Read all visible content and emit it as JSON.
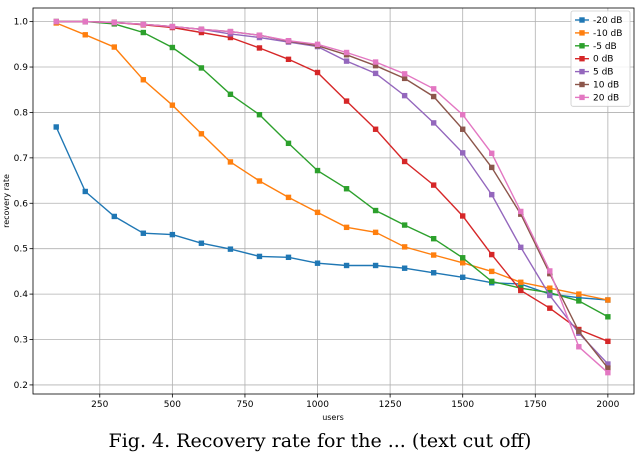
{
  "caption": "Fig. 4. Recovery rate for the ... (text cut off)",
  "chart_data": {
    "type": "line",
    "xlabel": "users",
    "ylabel": "recovery rate",
    "xlim": [
      20,
      2090
    ],
    "ylim": [
      0.18,
      1.03
    ],
    "xticks": [
      250,
      500,
      750,
      1000,
      1250,
      1500,
      1750,
      2000
    ],
    "yticks": [
      0.2,
      0.3,
      0.4,
      0.5,
      0.6,
      0.7,
      0.8,
      0.9,
      1.0
    ],
    "grid": true,
    "legend_position": "top-right",
    "x": [
      100,
      200,
      300,
      400,
      500,
      600,
      700,
      800,
      900,
      1000,
      1100,
      1200,
      1300,
      1400,
      1500,
      1600,
      1700,
      1800,
      1900,
      2000
    ],
    "series": [
      {
        "name": "-20 dB",
        "color": "#1f77b4",
        "values": [
          0.768,
          0.626,
          0.571,
          0.534,
          0.531,
          0.512,
          0.499,
          0.483,
          0.481,
          0.468,
          0.463,
          0.463,
          0.457,
          0.447,
          0.437,
          0.425,
          0.422,
          0.4,
          0.392,
          0.387
        ]
      },
      {
        "name": "-10 dB",
        "color": "#ff7f0e",
        "values": [
          0.997,
          0.971,
          0.944,
          0.872,
          0.816,
          0.753,
          0.691,
          0.649,
          0.613,
          0.58,
          0.547,
          0.536,
          0.504,
          0.486,
          0.469,
          0.45,
          0.426,
          0.413,
          0.4,
          0.387
        ]
      },
      {
        "name": "-5 dB",
        "color": "#2ca02c",
        "values": [
          1.0,
          1.0,
          0.995,
          0.976,
          0.943,
          0.898,
          0.84,
          0.795,
          0.732,
          0.672,
          0.632,
          0.584,
          0.552,
          0.522,
          0.48,
          0.428,
          0.413,
          0.403,
          0.385,
          0.35
        ]
      },
      {
        "name": "0 dB",
        "color": "#d62728",
        "values": [
          1.0,
          1.0,
          0.998,
          0.993,
          0.987,
          0.976,
          0.965,
          0.942,
          0.917,
          0.888,
          0.825,
          0.763,
          0.692,
          0.64,
          0.572,
          0.487,
          0.408,
          0.369,
          0.322,
          0.296
        ]
      },
      {
        "name": "5 dB",
        "color": "#9467bd",
        "values": [
          1.0,
          1.0,
          0.998,
          0.994,
          0.989,
          0.983,
          0.973,
          0.965,
          0.955,
          0.945,
          0.913,
          0.886,
          0.837,
          0.777,
          0.711,
          0.619,
          0.503,
          0.397,
          0.314,
          0.246
        ]
      },
      {
        "name": "10 dB",
        "color": "#8c564b",
        "values": [
          1.0,
          1.0,
          0.998,
          0.994,
          0.989,
          0.983,
          0.978,
          0.97,
          0.957,
          0.947,
          0.927,
          0.903,
          0.875,
          0.835,
          0.763,
          0.679,
          0.576,
          0.445,
          0.318,
          0.237
        ]
      },
      {
        "name": "20 dB",
        "color": "#e377c2",
        "values": [
          1.0,
          1.0,
          0.998,
          0.994,
          0.989,
          0.983,
          0.978,
          0.97,
          0.958,
          0.95,
          0.932,
          0.911,
          0.885,
          0.852,
          0.795,
          0.71,
          0.582,
          0.451,
          0.284,
          0.227
        ]
      }
    ]
  }
}
